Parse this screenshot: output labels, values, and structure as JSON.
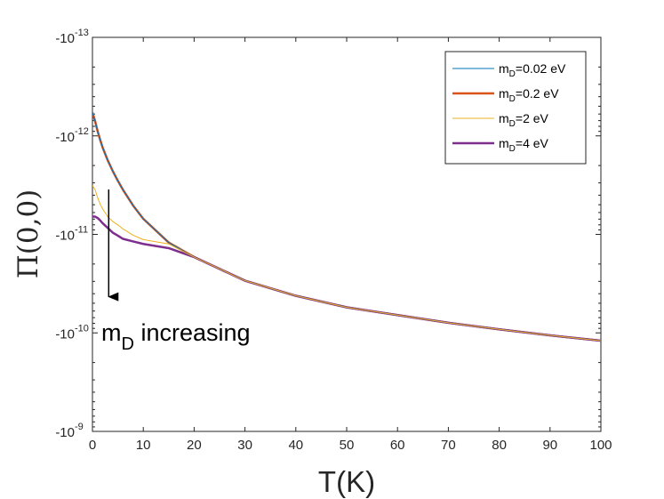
{
  "chart_data": {
    "type": "line",
    "xlabel": "T(K)",
    "ylabel": "Π(0,0)",
    "xlim": [
      0,
      100
    ],
    "x_ticks": [
      "0",
      "10",
      "20",
      "30",
      "40",
      "50",
      "60",
      "70",
      "80",
      "90",
      "100"
    ],
    "y_scale": "log",
    "y_note": "negative values; axis shows magnitude |Π| on log scale, -1e-13 at top to -1e-9 at bottom",
    "ylim": [
      -1e-13,
      -1e-09
    ],
    "y_ticks": [
      {
        "base": "-10",
        "exp": "-13"
      },
      {
        "base": "-10",
        "exp": "-12"
      },
      {
        "base": "-10",
        "exp": "-11"
      },
      {
        "base": "-10",
        "exp": "-10"
      },
      {
        "base": "-10",
        "exp": "-9"
      }
    ],
    "legend": {
      "position": "top-right"
    },
    "x": [
      0,
      0.5,
      1,
      1.5,
      2,
      3,
      4,
      5,
      6,
      8,
      10,
      15,
      20,
      30,
      40,
      50,
      60,
      70,
      80,
      90,
      100
    ],
    "series": [
      {
        "name": "m=0.02 eV",
        "label_main": "m",
        "label_sub": "D",
        "label_rest": "=0.02 eV",
        "color": "#0072BD",
        "width": 1,
        "values": [
          -5.8e-13,
          -7e-13,
          -8.9e-13,
          -1.09e-12,
          -1.31e-12,
          -1.77e-12,
          -2.28e-12,
          -2.86e-12,
          -3.52e-12,
          -5.1e-12,
          -6.95e-12,
          -1.21e-11,
          -1.7e-11,
          -2.95e-11,
          -4.2e-11,
          -5.5e-11,
          -6.6e-11,
          -7.9e-11,
          -9.2e-11,
          -1.06e-10,
          -1.2e-10
        ]
      },
      {
        "name": "m=0.2 eV",
        "label_main": "m",
        "label_sub": "D",
        "label_rest": "=0.2 eV",
        "color": "#D95319",
        "width": 2.5,
        "values": [
          -5.8e-13,
          -7e-13,
          -8.9e-13,
          -1.09e-12,
          -1.31e-12,
          -1.77e-12,
          -2.28e-12,
          -2.86e-12,
          -3.52e-12,
          -5.1e-12,
          -6.95e-12,
          -1.21e-11,
          -1.7e-11,
          -2.95e-11,
          -4.2e-11,
          -5.5e-11,
          -6.6e-11,
          -7.9e-11,
          -9.2e-11,
          -1.06e-10,
          -1.2e-10
        ]
      },
      {
        "name": "m=2 eV",
        "label_main": "m",
        "label_sub": "D",
        "label_rest": "=2 eV",
        "color": "#EDB120",
        "width": 1,
        "values": [
          -3.2e-12,
          -3.5e-12,
          -4.2e-12,
          -4.9e-12,
          -5.5e-12,
          -6.6e-12,
          -7.4e-12,
          -8e-12,
          -8.8e-12,
          -1.02e-11,
          -1.13e-11,
          -1.25e-11,
          -1.7e-11,
          -2.95e-11,
          -4.2e-11,
          -5.5e-11,
          -6.6e-11,
          -7.9e-11,
          -9.2e-11,
          -1.06e-10,
          -1.2e-10
        ]
      },
      {
        "name": "m=4 eV",
        "label_main": "m",
        "label_sub": "D",
        "label_rest": "=4 eV",
        "color": "#7E2F8E",
        "width": 2.5,
        "values": [
          -6.6e-12,
          -6.6e-12,
          -6.8e-12,
          -7.2e-12,
          -7.7e-12,
          -8.6e-12,
          -9.6e-12,
          -1.03e-11,
          -1.11e-11,
          -1.18e-11,
          -1.25e-11,
          -1.38e-11,
          -1.7e-11,
          -2.95e-11,
          -4.2e-11,
          -5.5e-11,
          -6.6e-11,
          -7.9e-11,
          -9.2e-11,
          -1.06e-10,
          -1.2e-10
        ]
      }
    ],
    "annotation": {
      "main": "m",
      "sub": "D",
      "rest": " increasing",
      "arrow": "down",
      "arrow_from": {
        "x": 3.2,
        "y": -3.5e-12
      },
      "arrow_to": {
        "x": 3.2,
        "y": -4.3e-11
      }
    }
  }
}
